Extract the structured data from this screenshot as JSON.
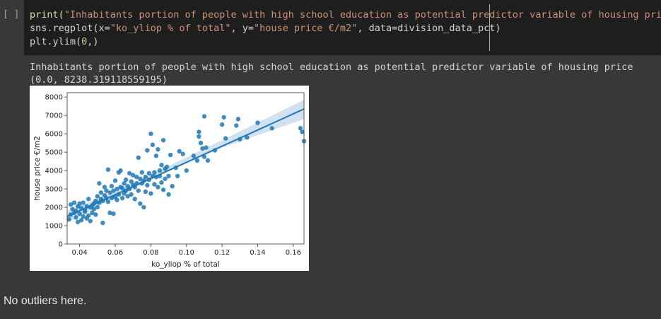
{
  "code_cell": {
    "run_indicator": "[ ]",
    "line1": {
      "fn": "print(",
      "str": "\"Inhabitants portion of people with high school education as potential predictor variable of housing price\"",
      "close": ")"
    },
    "line2": {
      "a": "sns.regplot(x=",
      "s1": "\"ko_yliop % of total\"",
      "b": ", y=",
      "s2": "\"house price €/m2\"",
      "c": ", data=division_data_pct)"
    },
    "line3": {
      "a": "plt.ylim(",
      "n": "0",
      "b": ",)"
    }
  },
  "output": {
    "print_line": "Inhabitants portion of people with high school education as potential predictor variable of housing price",
    "ylim_line": "(0.0, 8238.319118559195)"
  },
  "markdown": {
    "text": "No outliers here."
  },
  "colors": {
    "point": "#1f77b4",
    "ci_band": "#c6d9ec",
    "code_bg": "#1e1e1e",
    "cell_bg": "#383838"
  },
  "chart_data": {
    "type": "scatter",
    "title": "",
    "xlabel": "ko_yliop % of total",
    "ylabel": "house price €/m2",
    "xlim": [
      0.033,
      0.166
    ],
    "ylim": [
      0,
      8238.32
    ],
    "xticks": [
      "0.04",
      "0.06",
      "0.08",
      "0.10",
      "0.12",
      "0.14",
      "0.16"
    ],
    "xtick_values": [
      0.04,
      0.06,
      0.08,
      0.1,
      0.12,
      0.14,
      0.16
    ],
    "yticks": [
      "0",
      "1000",
      "2000",
      "3000",
      "4000",
      "5000",
      "6000",
      "7000",
      "8000"
    ],
    "ytick_values": [
      0,
      1000,
      2000,
      3000,
      4000,
      5000,
      6000,
      7000,
      8000
    ],
    "regression": {
      "x": [
        0.033,
        0.166
      ],
      "y": [
        1500,
        7350
      ]
    },
    "ci_band": {
      "x": [
        0.033,
        0.06,
        0.09,
        0.12,
        0.166
      ],
      "upper": [
        1800,
        2850,
        4250,
        5650,
        7850
      ],
      "lower": [
        1150,
        2550,
        3950,
        5250,
        6800
      ]
    },
    "points": [
      [
        0.034,
        1350
      ],
      [
        0.035,
        1600
      ],
      [
        0.035,
        2150
      ],
      [
        0.036,
        1900
      ],
      [
        0.037,
        1700
      ],
      [
        0.037,
        2250
      ],
      [
        0.038,
        1450
      ],
      [
        0.038,
        1800
      ],
      [
        0.039,
        2050
      ],
      [
        0.039,
        1200
      ],
      [
        0.04,
        2200
      ],
      [
        0.04,
        1650
      ],
      [
        0.041,
        1950
      ],
      [
        0.041,
        1300
      ],
      [
        0.042,
        1500
      ],
      [
        0.042,
        2250
      ],
      [
        0.043,
        1750
      ],
      [
        0.043,
        1850
      ],
      [
        0.044,
        1400
      ],
      [
        0.044,
        2050
      ],
      [
        0.045,
        1550
      ],
      [
        0.045,
        2450
      ],
      [
        0.046,
        1250
      ],
      [
        0.046,
        2000
      ],
      [
        0.047,
        1700
      ],
      [
        0.047,
        2100
      ],
      [
        0.048,
        1900
      ],
      [
        0.048,
        2200
      ],
      [
        0.049,
        1600
      ],
      [
        0.049,
        2350
      ],
      [
        0.05,
        2000
      ],
      [
        0.05,
        2600
      ],
      [
        0.051,
        2250
      ],
      [
        0.051,
        3300
      ],
      [
        0.052,
        2450
      ],
      [
        0.052,
        2800
      ],
      [
        0.053,
        1150
      ],
      [
        0.053,
        2350
      ],
      [
        0.054,
        2650
      ],
      [
        0.054,
        3100
      ],
      [
        0.055,
        2500
      ],
      [
        0.055,
        2900
      ],
      [
        0.056,
        4050
      ],
      [
        0.056,
        2300
      ],
      [
        0.057,
        1700
      ],
      [
        0.057,
        2800
      ],
      [
        0.058,
        2500
      ],
      [
        0.058,
        3150
      ],
      [
        0.059,
        1650
      ],
      [
        0.059,
        2900
      ],
      [
        0.06,
        2550
      ],
      [
        0.06,
        3450
      ],
      [
        0.061,
        2400
      ],
      [
        0.061,
        3000
      ],
      [
        0.062,
        3900
      ],
      [
        0.062,
        2700
      ],
      [
        0.063,
        3100
      ],
      [
        0.063,
        4000
      ],
      [
        0.064,
        2500
      ],
      [
        0.064,
        3050
      ],
      [
        0.065,
        2750
      ],
      [
        0.065,
        3300
      ],
      [
        0.066,
        2900
      ],
      [
        0.066,
        3500
      ],
      [
        0.067,
        2600
      ],
      [
        0.067,
        3150
      ],
      [
        0.068,
        3850
      ],
      [
        0.068,
        3000
      ],
      [
        0.069,
        2700
      ],
      [
        0.069,
        3400
      ],
      [
        0.07,
        3200
      ],
      [
        0.07,
        3750
      ],
      [
        0.071,
        2450
      ],
      [
        0.071,
        3100
      ],
      [
        0.072,
        3650
      ],
      [
        0.072,
        3300
      ],
      [
        0.073,
        4700
      ],
      [
        0.073,
        2900
      ],
      [
        0.074,
        2200
      ],
      [
        0.074,
        3550
      ],
      [
        0.075,
        3300
      ],
      [
        0.075,
        3900
      ],
      [
        0.076,
        2000
      ],
      [
        0.076,
        3450
      ],
      [
        0.077,
        2850
      ],
      [
        0.077,
        3650
      ],
      [
        0.078,
        3200
      ],
      [
        0.078,
        5100
      ],
      [
        0.079,
        3850
      ],
      [
        0.079,
        3500
      ],
      [
        0.08,
        6000
      ],
      [
        0.08,
        2750
      ],
      [
        0.081,
        3700
      ],
      [
        0.081,
        5400
      ],
      [
        0.082,
        3900
      ],
      [
        0.082,
        3250
      ],
      [
        0.083,
        4800
      ],
      [
        0.083,
        3650
      ],
      [
        0.084,
        5150
      ],
      [
        0.084,
        3100
      ],
      [
        0.085,
        4000
      ],
      [
        0.085,
        3700
      ],
      [
        0.086,
        4300
      ],
      [
        0.086,
        3350
      ],
      [
        0.087,
        5650
      ],
      [
        0.087,
        2950
      ],
      [
        0.088,
        4100
      ],
      [
        0.088,
        3550
      ],
      [
        0.089,
        4200
      ],
      [
        0.09,
        2700
      ],
      [
        0.09,
        3700
      ],
      [
        0.091,
        4850
      ],
      [
        0.092,
        3150
      ],
      [
        0.094,
        4150
      ],
      [
        0.095,
        3700
      ],
      [
        0.096,
        5050
      ],
      [
        0.098,
        4900
      ],
      [
        0.1,
        4000
      ],
      [
        0.104,
        4800
      ],
      [
        0.106,
        4550
      ],
      [
        0.107,
        5850
      ],
      [
        0.107,
        6100
      ],
      [
        0.108,
        5500
      ],
      [
        0.109,
        5200
      ],
      [
        0.11,
        6950
      ],
      [
        0.11,
        4750
      ],
      [
        0.111,
        5250
      ],
      [
        0.112,
        4550
      ],
      [
        0.116,
        5100
      ],
      [
        0.12,
        6500
      ],
      [
        0.121,
        6900
      ],
      [
        0.122,
        5750
      ],
      [
        0.128,
        6450
      ],
      [
        0.129,
        6800
      ],
      [
        0.13,
        5700
      ],
      [
        0.134,
        5800
      ],
      [
        0.14,
        6600
      ],
      [
        0.148,
        6300
      ],
      [
        0.164,
        6300
      ],
      [
        0.165,
        6100
      ],
      [
        0.166,
        5600
      ]
    ]
  }
}
